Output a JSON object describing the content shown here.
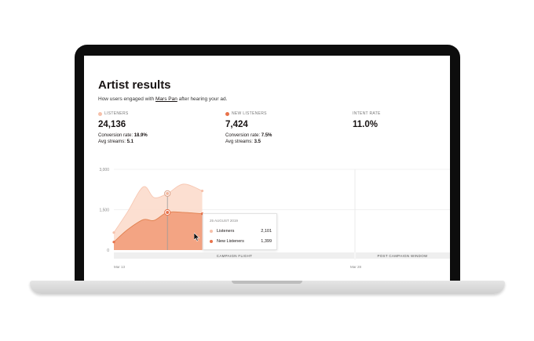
{
  "page": {
    "title": "Artist results",
    "subtitle_pre": "How users engaged with ",
    "artist_name": "Mars Pan",
    "subtitle_post": " after hearing your ad."
  },
  "metrics": [
    {
      "label": "LISTENERS",
      "value": "24,136",
      "conv_label": "Conversion rate:",
      "conv_value": "18.9%",
      "streams_label": "Avg streams:",
      "streams_value": "5.1",
      "color": "#f6c1ab"
    },
    {
      "label": "NEW LISTENERS",
      "value": "7,424",
      "conv_label": "Conversion rate:",
      "conv_value": "7.5%",
      "streams_label": "Avg streams:",
      "streams_value": "3.5",
      "color": "#e8724a"
    },
    {
      "label": "INTENT RATE",
      "value": "11.0%"
    }
  ],
  "tooltip": {
    "date": "25 AUGUST 2019",
    "rows": [
      {
        "label": "Listeners",
        "value": "2,101",
        "color": "#f6c1ab"
      },
      {
        "label": "New Listeners",
        "value": "1,399",
        "color": "#e8724a"
      }
    ]
  },
  "chart_data": {
    "type": "area",
    "y_ticks": [
      "3,000",
      "1,500",
      "0"
    ],
    "ylim": [
      0,
      3000
    ],
    "x_labels": [
      "Mar 13",
      "Mar 28"
    ],
    "bands": [
      "CAMPAIGN FLIGHT",
      "POST CAMPAIGN WINDOW"
    ],
    "grid": true,
    "series": [
      {
        "name": "Listeners",
        "color": "#fbd9c9",
        "points": [
          [
            0,
            650
          ],
          [
            5,
            1400
          ],
          [
            11,
            2350
          ],
          [
            15,
            1950
          ],
          [
            20,
            2101
          ],
          [
            26,
            2450
          ],
          [
            33,
            2200
          ]
        ]
      },
      {
        "name": "New Listeners",
        "color": "#f2a07e",
        "points": [
          [
            0,
            300
          ],
          [
            5,
            750
          ],
          [
            11,
            1130
          ],
          [
            15,
            1100
          ],
          [
            20,
            1399
          ],
          [
            26,
            1400
          ],
          [
            33,
            1350
          ]
        ]
      }
    ]
  }
}
